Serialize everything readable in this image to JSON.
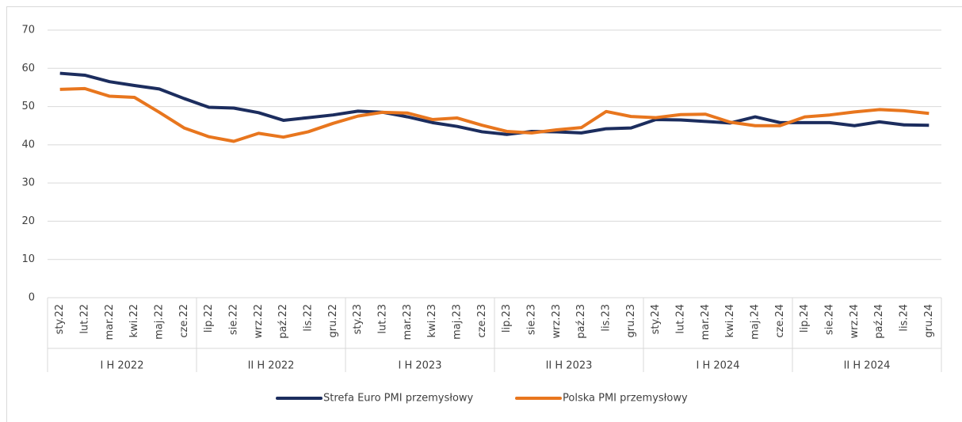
{
  "chart_data": {
    "type": "line",
    "categories": [
      "sty.22",
      "lut.22",
      "mar.22",
      "kwi.22",
      "maj.22",
      "cze.22",
      "lip.22",
      "sie.22",
      "wrz.22",
      "paź.22",
      "lis.22",
      "gru.22",
      "sty.23",
      "lut.23",
      "mar.23",
      "kwi.23",
      "maj.23",
      "cze.23",
      "lip.23",
      "sie.23",
      "wrz.23",
      "paź.23",
      "lis.23",
      "gru.23",
      "sty.24",
      "lut.24",
      "mar.24",
      "kwi.24",
      "maj.24",
      "cze.24",
      "lip.24",
      "sie.24",
      "wrz.24",
      "paź.24",
      "lis.24",
      "gru.24"
    ],
    "groups": [
      "I H 2022",
      "II H 2022",
      "I H 2023",
      "II H 2023",
      "I H 2024",
      "II H 2024"
    ],
    "series": [
      {
        "name": "Strefa Euro PMI przemysłowy",
        "color": "#1c2d5e",
        "values": [
          58.7,
          58.2,
          56.5,
          55.5,
          54.6,
          52.1,
          49.8,
          49.6,
          48.4,
          46.4,
          47.1,
          47.8,
          48.8,
          48.5,
          47.3,
          45.8,
          44.8,
          43.4,
          42.7,
          43.5,
          43.4,
          43.1,
          44.2,
          44.4,
          46.6,
          46.5,
          46.1,
          45.7,
          47.3,
          45.8,
          45.8,
          45.8,
          45.0,
          46.0,
          45.2,
          45.1
        ]
      },
      {
        "name": "Polska PMI przemysłowy",
        "color": "#e8761e",
        "values": [
          54.5,
          54.7,
          52.7,
          52.4,
          48.5,
          44.4,
          42.1,
          40.9,
          43.0,
          42.0,
          43.4,
          45.6,
          47.5,
          48.5,
          48.3,
          46.6,
          47.0,
          45.1,
          43.5,
          43.1,
          43.9,
          44.5,
          48.7,
          47.4,
          47.1,
          47.9,
          48.0,
          45.9,
          45.0,
          45.0,
          47.3,
          47.8,
          48.6,
          49.2,
          48.9,
          48.2
        ]
      }
    ],
    "ylim": [
      0,
      70
    ],
    "yticks": [
      0,
      10,
      20,
      30,
      40,
      50,
      60,
      70
    ],
    "grid": true,
    "legend": "bottom"
  }
}
